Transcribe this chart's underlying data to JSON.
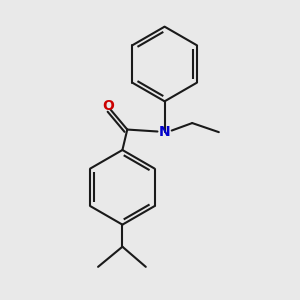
{
  "background_color": "#e9e9e9",
  "bond_color": "#1a1a1a",
  "oxygen_color": "#cc0000",
  "nitrogen_color": "#0000cc",
  "bond_width": 1.5,
  "figsize": [
    3.0,
    3.0
  ],
  "dpi": 100
}
